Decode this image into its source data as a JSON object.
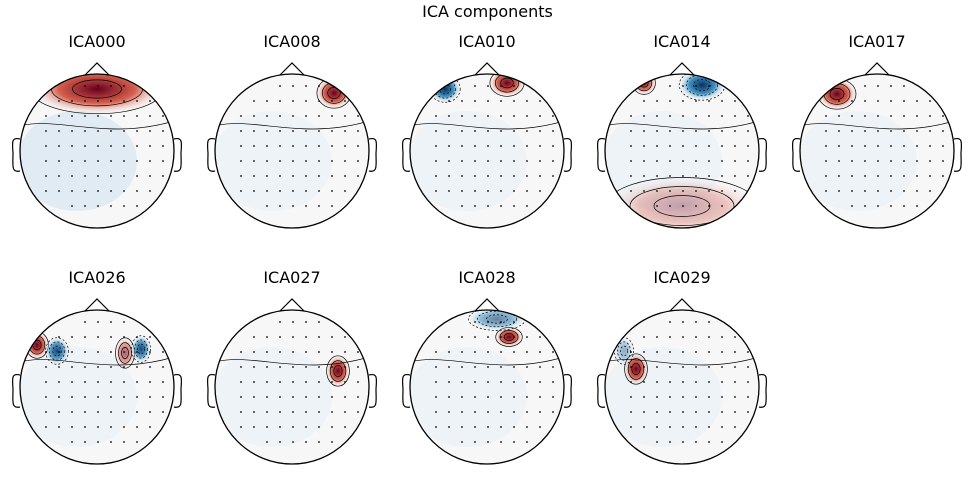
{
  "figure": {
    "title": "ICA components"
  },
  "colors": {
    "positive_strong": "#67001f",
    "positive": "#d6604d",
    "neutral": "#f7f7f7",
    "negative": "#4393c3",
    "negative_strong": "#053061",
    "outline": "#000000"
  },
  "colormap": "RdBu_r",
  "components": [
    {
      "name": "ICA000",
      "pattern": "frontal-positive",
      "blobs": [
        {
          "kind": "pos",
          "strength": 1.0,
          "loc": "frontal band"
        }
      ]
    },
    {
      "name": "ICA008",
      "pattern": "right-frontal-positive",
      "blobs": [
        {
          "kind": "pos",
          "strength": 1.0,
          "loc": "right frontal"
        }
      ]
    },
    {
      "name": "ICA010",
      "pattern": "frontal-dipole",
      "blobs": [
        {
          "kind": "neg",
          "strength": 1.0,
          "loc": "left frontal"
        },
        {
          "kind": "pos",
          "strength": 1.0,
          "loc": "right frontal"
        }
      ]
    },
    {
      "name": "ICA014",
      "pattern": "frontal-dipole",
      "blobs": [
        {
          "kind": "pos",
          "strength": 0.9,
          "loc": "left frontal"
        },
        {
          "kind": "neg",
          "strength": 1.0,
          "loc": "right frontal"
        },
        {
          "kind": "pos",
          "strength": 0.3,
          "loc": "posterior"
        }
      ]
    },
    {
      "name": "ICA017",
      "pattern": "left-frontal-positive",
      "blobs": [
        {
          "kind": "pos",
          "strength": 1.0,
          "loc": "left frontal"
        }
      ]
    },
    {
      "name": "ICA026",
      "pattern": "multi-focal",
      "blobs": [
        {
          "kind": "pos",
          "strength": 1.0,
          "loc": "left temporal"
        },
        {
          "kind": "neg",
          "strength": 0.9,
          "loc": "left central"
        },
        {
          "kind": "pos",
          "strength": 0.6,
          "loc": "right central"
        },
        {
          "kind": "neg",
          "strength": 0.9,
          "loc": "right temporal"
        }
      ]
    },
    {
      "name": "ICA027",
      "pattern": "right-central-positive",
      "blobs": [
        {
          "kind": "pos",
          "strength": 1.0,
          "loc": "right central"
        }
      ]
    },
    {
      "name": "ICA028",
      "pattern": "frontal-focal",
      "blobs": [
        {
          "kind": "pos",
          "strength": 1.0,
          "loc": "right frontal"
        },
        {
          "kind": "neg",
          "strength": 0.6,
          "loc": "frontal"
        }
      ]
    },
    {
      "name": "ICA029",
      "pattern": "left-temporal-positive",
      "blobs": [
        {
          "kind": "pos",
          "strength": 1.0,
          "loc": "left temporal"
        },
        {
          "kind": "neg",
          "strength": 0.4,
          "loc": "left frontal"
        }
      ]
    }
  ]
}
